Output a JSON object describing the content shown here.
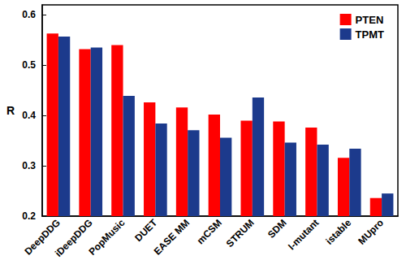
{
  "chart_data": {
    "type": "bar",
    "y_label": "R",
    "categories": [
      "DeepDDG",
      "iDeepDDG",
      "PopMusic",
      "DUET",
      "EASE MM",
      "mCSM",
      "STRUM",
      "SDM",
      "I-mutant",
      "istable",
      "MUpro"
    ],
    "series": [
      {
        "name": "PTEN",
        "color": "#ff0000",
        "values": [
          0.563,
          0.532,
          0.54,
          0.426,
          0.416,
          0.402,
          0.39,
          0.388,
          0.376,
          0.316,
          0.236
        ]
      },
      {
        "name": "TPMT",
        "color": "#1c3a8c",
        "values": [
          0.557,
          0.535,
          0.439,
          0.384,
          0.371,
          0.356,
          0.436,
          0.346,
          0.342,
          0.334,
          0.245
        ]
      }
    ],
    "ylim": [
      0.2,
      0.62
    ],
    "yticks": [
      0.2,
      0.3,
      0.4,
      0.5,
      0.6
    ],
    "grid": false,
    "legend": "upper right"
  }
}
